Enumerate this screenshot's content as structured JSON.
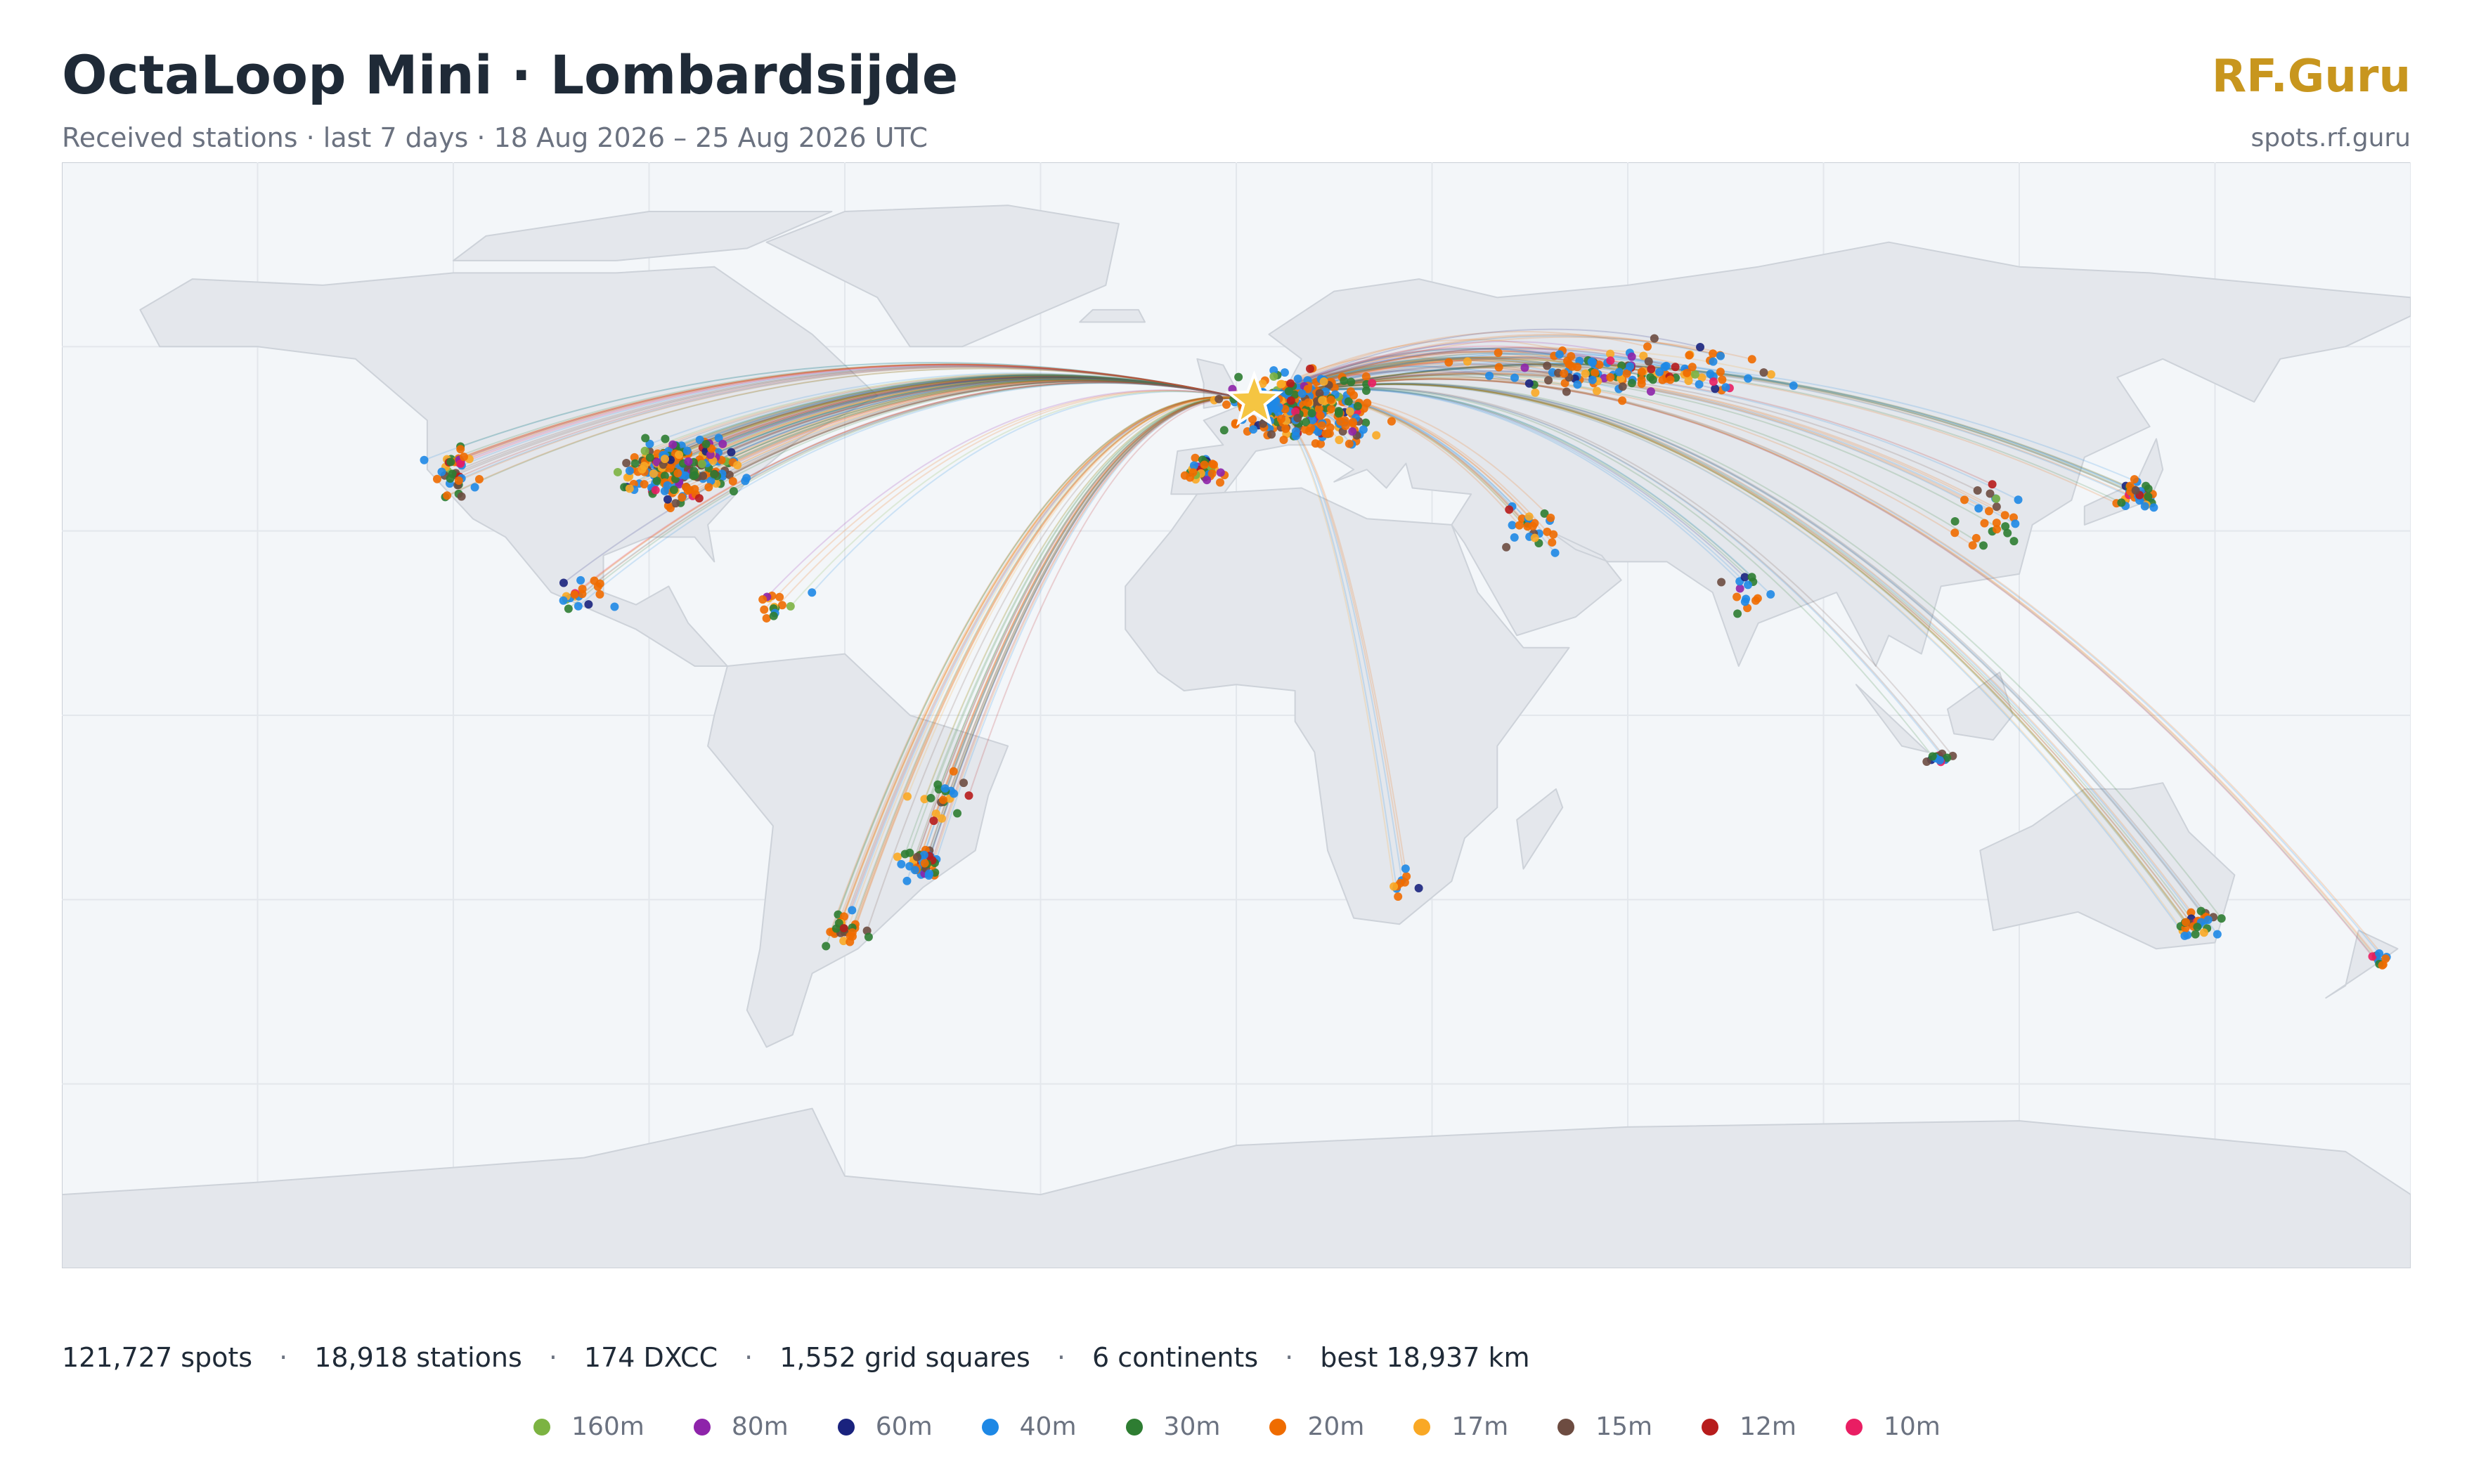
{
  "header": {
    "title": "OctaLoop Mini · Lombardsijde",
    "subtitle": "Received stations · last 7 days · 18 Aug 2026 – 25 Aug 2026 UTC",
    "brand": "RF.Guru",
    "url": "spots.rf.guru"
  },
  "stats": {
    "separator": "·",
    "items": [
      "121,727 spots",
      "18,918 stations",
      "174 DXCC",
      "1,552 grid squares",
      "6 continents",
      "best 18,937 km"
    ]
  },
  "legend": [
    {
      "name": "160m",
      "color": "#7cb342"
    },
    {
      "name": "80m",
      "color": "#8e24aa"
    },
    {
      "name": "60m",
      "color": "#1a237e"
    },
    {
      "name": "40m",
      "color": "#1e88e5"
    },
    {
      "name": "30m",
      "color": "#2e7d32"
    },
    {
      "name": "20m",
      "color": "#ef6c00"
    },
    {
      "name": "17m",
      "color": "#f9a825"
    },
    {
      "name": "15m",
      "color": "#6d4c41"
    },
    {
      "name": "12m",
      "color": "#b71c1c"
    },
    {
      "name": "10m",
      "color": "#e91e63"
    }
  ]
}
